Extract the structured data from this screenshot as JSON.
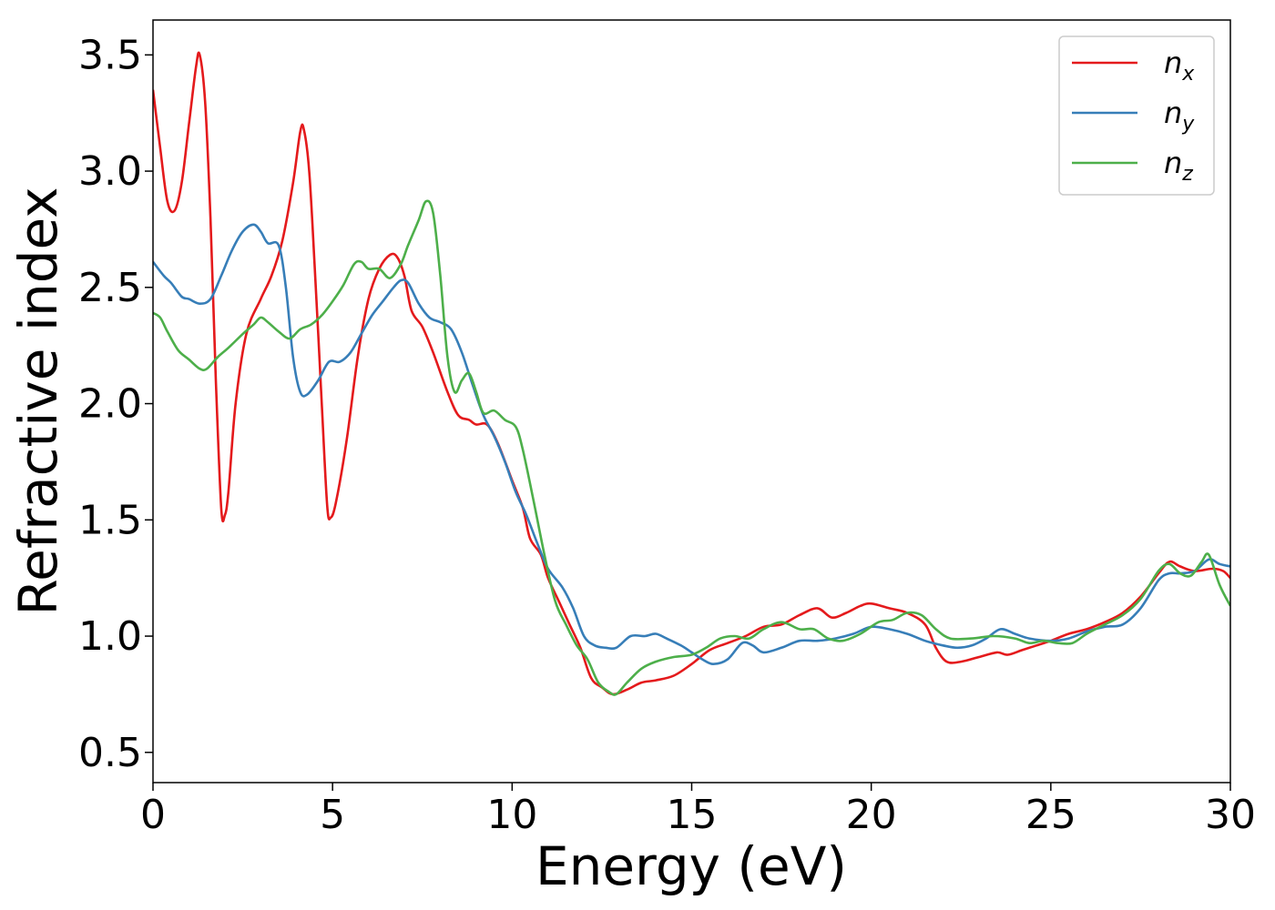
{
  "chart_data": {
    "type": "line",
    "xlabel": "Energy (eV)",
    "ylabel": "Refractive index",
    "xlim": [
      0,
      30
    ],
    "ylim": [
      0.37,
      3.65
    ],
    "xticks": [
      0,
      5,
      10,
      15,
      20,
      25,
      30
    ],
    "xtick_labels": [
      "0",
      "5",
      "10",
      "15",
      "20",
      "25",
      "30"
    ],
    "yticks": [
      0.5,
      1.0,
      1.5,
      2.0,
      2.5,
      3.0,
      3.5
    ],
    "ytick_labels": [
      "0.5",
      "1.0",
      "1.5",
      "2.0",
      "2.5",
      "3.0",
      "3.5"
    ],
    "grid": false,
    "legend_position": "top-right",
    "series": [
      {
        "name": "n_x",
        "name_base": "n",
        "name_sub": "x",
        "color": "#e41a1c",
        "points": [
          [
            0,
            3.35
          ],
          [
            0.2,
            3.1
          ],
          [
            0.4,
            2.87
          ],
          [
            0.6,
            2.83
          ],
          [
            0.8,
            2.95
          ],
          [
            1.0,
            3.2
          ],
          [
            1.2,
            3.45
          ],
          [
            1.3,
            3.5
          ],
          [
            1.45,
            3.3
          ],
          [
            1.6,
            2.8
          ],
          [
            1.75,
            2.1
          ],
          [
            1.9,
            1.55
          ],
          [
            2.0,
            1.52
          ],
          [
            2.1,
            1.62
          ],
          [
            2.3,
            2.0
          ],
          [
            2.6,
            2.3
          ],
          [
            3.0,
            2.45
          ],
          [
            3.3,
            2.55
          ],
          [
            3.6,
            2.7
          ],
          [
            3.9,
            2.95
          ],
          [
            4.1,
            3.17
          ],
          [
            4.2,
            3.18
          ],
          [
            4.35,
            3.0
          ],
          [
            4.5,
            2.6
          ],
          [
            4.7,
            2.0
          ],
          [
            4.85,
            1.56
          ],
          [
            4.95,
            1.51
          ],
          [
            5.1,
            1.58
          ],
          [
            5.4,
            1.85
          ],
          [
            5.7,
            2.2
          ],
          [
            6.0,
            2.45
          ],
          [
            6.3,
            2.58
          ],
          [
            6.6,
            2.64
          ],
          [
            6.8,
            2.63
          ],
          [
            7.0,
            2.55
          ],
          [
            7.2,
            2.4
          ],
          [
            7.5,
            2.33
          ],
          [
            7.8,
            2.22
          ],
          [
            8.2,
            2.05
          ],
          [
            8.5,
            1.95
          ],
          [
            8.8,
            1.93
          ],
          [
            9.0,
            1.91
          ],
          [
            9.3,
            1.91
          ],
          [
            9.6,
            1.83
          ],
          [
            10.0,
            1.67
          ],
          [
            10.3,
            1.55
          ],
          [
            10.5,
            1.42
          ],
          [
            10.8,
            1.35
          ],
          [
            11.0,
            1.25
          ],
          [
            11.3,
            1.15
          ],
          [
            11.6,
            1.05
          ],
          [
            11.9,
            0.95
          ],
          [
            12.2,
            0.82
          ],
          [
            12.5,
            0.78
          ],
          [
            12.8,
            0.75
          ],
          [
            13.2,
            0.77
          ],
          [
            13.6,
            0.8
          ],
          [
            14.0,
            0.81
          ],
          [
            14.5,
            0.83
          ],
          [
            15.0,
            0.88
          ],
          [
            15.5,
            0.94
          ],
          [
            16.0,
            0.97
          ],
          [
            16.5,
            1.0
          ],
          [
            17.0,
            1.04
          ],
          [
            17.5,
            1.05
          ],
          [
            18.0,
            1.09
          ],
          [
            18.5,
            1.12
          ],
          [
            18.9,
            1.08
          ],
          [
            19.3,
            1.1
          ],
          [
            19.7,
            1.13
          ],
          [
            20.0,
            1.14
          ],
          [
            20.5,
            1.12
          ],
          [
            21.0,
            1.1
          ],
          [
            21.5,
            1.05
          ],
          [
            21.8,
            0.95
          ],
          [
            22.1,
            0.89
          ],
          [
            22.5,
            0.89
          ],
          [
            23.0,
            0.91
          ],
          [
            23.5,
            0.93
          ],
          [
            23.8,
            0.92
          ],
          [
            24.2,
            0.94
          ],
          [
            24.6,
            0.96
          ],
          [
            25.0,
            0.98
          ],
          [
            25.5,
            1.01
          ],
          [
            26.0,
            1.03
          ],
          [
            26.5,
            1.06
          ],
          [
            27.0,
            1.1
          ],
          [
            27.5,
            1.17
          ],
          [
            28.0,
            1.27
          ],
          [
            28.3,
            1.32
          ],
          [
            28.6,
            1.3
          ],
          [
            29.0,
            1.28
          ],
          [
            29.5,
            1.29
          ],
          [
            29.8,
            1.28
          ],
          [
            30.0,
            1.25
          ]
        ]
      },
      {
        "name": "n_y",
        "name_base": "n",
        "name_sub": "y",
        "color": "#377eb8",
        "points": [
          [
            0,
            2.61
          ],
          [
            0.3,
            2.55
          ],
          [
            0.5,
            2.52
          ],
          [
            0.8,
            2.46
          ],
          [
            1.0,
            2.45
          ],
          [
            1.3,
            2.43
          ],
          [
            1.6,
            2.45
          ],
          [
            1.9,
            2.55
          ],
          [
            2.2,
            2.66
          ],
          [
            2.5,
            2.74
          ],
          [
            2.8,
            2.77
          ],
          [
            3.0,
            2.74
          ],
          [
            3.2,
            2.69
          ],
          [
            3.5,
            2.68
          ],
          [
            3.7,
            2.5
          ],
          [
            3.9,
            2.2
          ],
          [
            4.1,
            2.05
          ],
          [
            4.3,
            2.04
          ],
          [
            4.6,
            2.1
          ],
          [
            4.9,
            2.18
          ],
          [
            5.2,
            2.18
          ],
          [
            5.5,
            2.22
          ],
          [
            5.8,
            2.3
          ],
          [
            6.1,
            2.38
          ],
          [
            6.4,
            2.44
          ],
          [
            6.7,
            2.5
          ],
          [
            6.9,
            2.53
          ],
          [
            7.1,
            2.52
          ],
          [
            7.4,
            2.43
          ],
          [
            7.7,
            2.37
          ],
          [
            8.0,
            2.35
          ],
          [
            8.3,
            2.32
          ],
          [
            8.6,
            2.22
          ],
          [
            8.9,
            2.08
          ],
          [
            9.2,
            1.95
          ],
          [
            9.5,
            1.86
          ],
          [
            9.8,
            1.75
          ],
          [
            10.1,
            1.62
          ],
          [
            10.4,
            1.52
          ],
          [
            10.7,
            1.4
          ],
          [
            11.0,
            1.29
          ],
          [
            11.4,
            1.21
          ],
          [
            11.7,
            1.12
          ],
          [
            12.0,
            1.0
          ],
          [
            12.3,
            0.96
          ],
          [
            12.6,
            0.95
          ],
          [
            12.9,
            0.95
          ],
          [
            13.3,
            1.0
          ],
          [
            13.7,
            1.0
          ],
          [
            14.0,
            1.01
          ],
          [
            14.3,
            0.99
          ],
          [
            14.7,
            0.96
          ],
          [
            15.0,
            0.93
          ],
          [
            15.3,
            0.9
          ],
          [
            15.6,
            0.88
          ],
          [
            16.0,
            0.9
          ],
          [
            16.4,
            0.97
          ],
          [
            16.7,
            0.96
          ],
          [
            17.0,
            0.93
          ],
          [
            17.5,
            0.95
          ],
          [
            18.0,
            0.98
          ],
          [
            18.5,
            0.98
          ],
          [
            19.0,
            0.99
          ],
          [
            19.5,
            1.01
          ],
          [
            20.0,
            1.04
          ],
          [
            20.5,
            1.03
          ],
          [
            21.0,
            1.01
          ],
          [
            21.5,
            0.98
          ],
          [
            22.0,
            0.96
          ],
          [
            22.4,
            0.95
          ],
          [
            22.8,
            0.96
          ],
          [
            23.2,
            0.99
          ],
          [
            23.6,
            1.03
          ],
          [
            24.0,
            1.01
          ],
          [
            24.4,
            0.99
          ],
          [
            25.0,
            0.98
          ],
          [
            25.5,
            0.99
          ],
          [
            26.0,
            1.02
          ],
          [
            26.5,
            1.04
          ],
          [
            27.0,
            1.05
          ],
          [
            27.5,
            1.12
          ],
          [
            28.0,
            1.24
          ],
          [
            28.3,
            1.27
          ],
          [
            28.6,
            1.27
          ],
          [
            29.0,
            1.28
          ],
          [
            29.4,
            1.33
          ],
          [
            29.7,
            1.31
          ],
          [
            30.0,
            1.3
          ]
        ]
      },
      {
        "name": "n_z",
        "name_base": "n",
        "name_sub": "z",
        "color": "#4daf4a",
        "points": [
          [
            0,
            2.39
          ],
          [
            0.2,
            2.37
          ],
          [
            0.4,
            2.31
          ],
          [
            0.7,
            2.23
          ],
          [
            1.0,
            2.19
          ],
          [
            1.3,
            2.15
          ],
          [
            1.5,
            2.15
          ],
          [
            1.8,
            2.2
          ],
          [
            2.1,
            2.24
          ],
          [
            2.5,
            2.3
          ],
          [
            2.8,
            2.34
          ],
          [
            3.0,
            2.37
          ],
          [
            3.2,
            2.35
          ],
          [
            3.5,
            2.31
          ],
          [
            3.8,
            2.28
          ],
          [
            4.1,
            2.32
          ],
          [
            4.4,
            2.34
          ],
          [
            4.7,
            2.38
          ],
          [
            5.0,
            2.44
          ],
          [
            5.3,
            2.51
          ],
          [
            5.6,
            2.6
          ],
          [
            5.8,
            2.61
          ],
          [
            6.0,
            2.58
          ],
          [
            6.3,
            2.58
          ],
          [
            6.6,
            2.54
          ],
          [
            6.9,
            2.6
          ],
          [
            7.1,
            2.68
          ],
          [
            7.4,
            2.79
          ],
          [
            7.6,
            2.87
          ],
          [
            7.8,
            2.82
          ],
          [
            8.0,
            2.55
          ],
          [
            8.2,
            2.2
          ],
          [
            8.4,
            2.05
          ],
          [
            8.6,
            2.1
          ],
          [
            8.8,
            2.13
          ],
          [
            9.0,
            2.05
          ],
          [
            9.2,
            1.96
          ],
          [
            9.5,
            1.97
          ],
          [
            9.8,
            1.93
          ],
          [
            10.1,
            1.9
          ],
          [
            10.3,
            1.8
          ],
          [
            10.6,
            1.58
          ],
          [
            10.9,
            1.35
          ],
          [
            11.2,
            1.15
          ],
          [
            11.5,
            1.05
          ],
          [
            11.8,
            0.96
          ],
          [
            12.1,
            0.9
          ],
          [
            12.4,
            0.8
          ],
          [
            12.7,
            0.76
          ],
          [
            12.9,
            0.75
          ],
          [
            13.2,
            0.8
          ],
          [
            13.6,
            0.86
          ],
          [
            14.0,
            0.89
          ],
          [
            14.5,
            0.91
          ],
          [
            15.0,
            0.92
          ],
          [
            15.4,
            0.95
          ],
          [
            15.8,
            0.99
          ],
          [
            16.2,
            1.0
          ],
          [
            16.6,
            0.99
          ],
          [
            17.0,
            1.03
          ],
          [
            17.5,
            1.06
          ],
          [
            18.0,
            1.03
          ],
          [
            18.4,
            1.03
          ],
          [
            18.8,
            0.99
          ],
          [
            19.2,
            0.98
          ],
          [
            19.7,
            1.01
          ],
          [
            20.2,
            1.06
          ],
          [
            20.6,
            1.07
          ],
          [
            21.0,
            1.1
          ],
          [
            21.4,
            1.09
          ],
          [
            21.8,
            1.03
          ],
          [
            22.2,
            0.99
          ],
          [
            22.8,
            0.99
          ],
          [
            23.4,
            1.0
          ],
          [
            24.0,
            0.99
          ],
          [
            24.4,
            0.97
          ],
          [
            24.8,
            0.98
          ],
          [
            25.2,
            0.97
          ],
          [
            25.6,
            0.97
          ],
          [
            26.0,
            1.01
          ],
          [
            26.5,
            1.05
          ],
          [
            27.0,
            1.09
          ],
          [
            27.5,
            1.16
          ],
          [
            28.0,
            1.28
          ],
          [
            28.3,
            1.31
          ],
          [
            28.6,
            1.27
          ],
          [
            28.9,
            1.26
          ],
          [
            29.2,
            1.32
          ],
          [
            29.4,
            1.35
          ],
          [
            29.7,
            1.22
          ],
          [
            30.0,
            1.13
          ]
        ]
      }
    ]
  }
}
